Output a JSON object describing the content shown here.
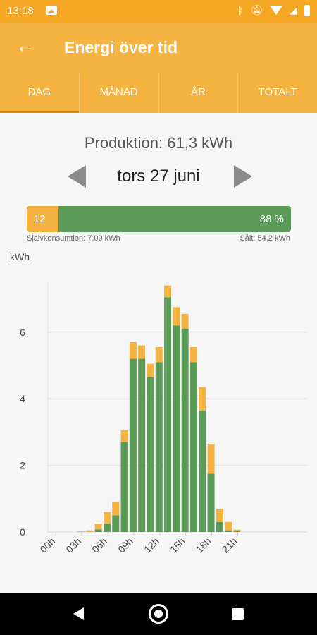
{
  "status_bar": {
    "time": "13:18",
    "icons": [
      "image-icon",
      "bluetooth-icon",
      "mute-icon",
      "wifi-icon",
      "signal-icon",
      "battery-icon"
    ]
  },
  "app_bar": {
    "back_icon": "arrow-left-icon",
    "title": "Energi över tid"
  },
  "tabs": [
    {
      "label": "DAG",
      "active": true
    },
    {
      "label": "MÅNAD",
      "active": false
    },
    {
      "label": "ÅR",
      "active": false
    },
    {
      "label": "TOTALT",
      "active": false
    }
  ],
  "summary": {
    "production": "Produktion: 61,3 kWh",
    "date": "tors 27 juni",
    "self_label": "12",
    "sold_label": "88 %",
    "self_fraction": 0.12,
    "self_consumption_text": "Självkonsumtion: 7,09 kWh",
    "sold_text": "Sålt: 54,2 kWh"
  },
  "colors": {
    "primary": "#f5b342",
    "self": "#f5b342",
    "sold": "#5b9a57"
  },
  "chart_data": {
    "type": "bar",
    "ylabel": "kWh",
    "ylim": [
      0,
      7.5
    ],
    "yticks": [
      0,
      2,
      4,
      6
    ],
    "xtick_labels": [
      "00h",
      "03h",
      "06h",
      "09h",
      "12h",
      "15h",
      "18h",
      "21h"
    ],
    "xtick_hours": [
      0,
      3,
      6,
      9,
      12,
      15,
      18,
      21
    ],
    "grid": true,
    "stacked": true,
    "hours": [
      0,
      1,
      2,
      3,
      4,
      5,
      6,
      7,
      8,
      9,
      10,
      11,
      12,
      13,
      14,
      15,
      16,
      17,
      18,
      19,
      20,
      21,
      22,
      23
    ],
    "series": [
      {
        "values": [
          0,
          0,
          0,
          0,
          0,
          0.08,
          0.25,
          0.5,
          2.7,
          5.2,
          5.2,
          4.65,
          5.1,
          7.05,
          6.2,
          6.1,
          5.1,
          3.65,
          1.75,
          0.3,
          0.05,
          0.02,
          0,
          0
        ]
      },
      {
        "values": [
          0,
          0,
          0,
          0.02,
          0.05,
          0.17,
          0.35,
          0.4,
          0.35,
          0.5,
          0.4,
          0.4,
          0.45,
          0.35,
          0.55,
          0.45,
          0.45,
          0.7,
          0.9,
          0.4,
          0.25,
          0.05,
          0,
          0
        ]
      }
    ]
  },
  "nav_bar": {
    "icons": [
      "back-triangle-icon",
      "home-circle-icon",
      "recents-square-icon"
    ]
  }
}
